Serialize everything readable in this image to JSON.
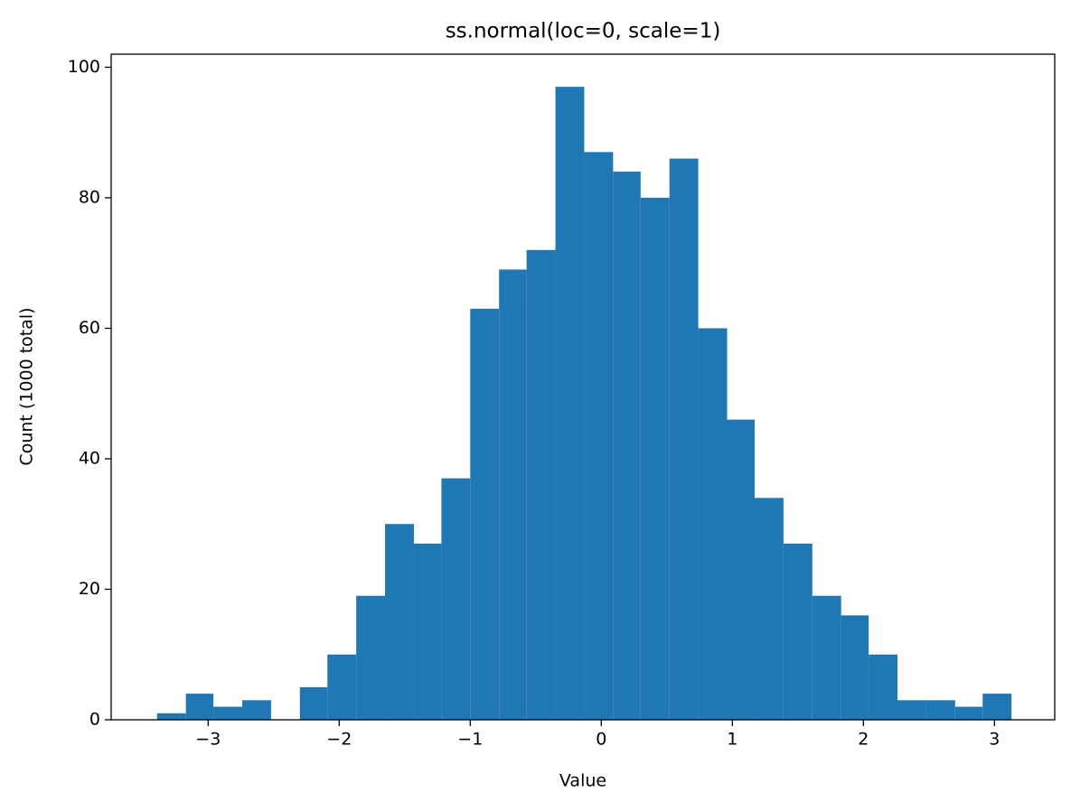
{
  "chart_data": {
    "type": "histogram",
    "title": "ss.normal(loc=0, scale=1)",
    "x_label": "Value",
    "y_label": "Count (1000 total)",
    "color": "#1f77b4",
    "bins": [
      -3.39,
      -3.17,
      -2.96,
      -2.74,
      -2.52,
      -2.3,
      -2.09,
      -1.87,
      -1.65,
      -1.43,
      -1.22,
      -1.0,
      -0.78,
      -0.57,
      -0.35,
      -0.13,
      0.09,
      0.3,
      0.52,
      0.74,
      0.96,
      1.17,
      1.39,
      1.61,
      1.83,
      2.04,
      2.26,
      2.48,
      2.7,
      2.91,
      3.13
    ],
    "values": [
      1,
      4,
      2,
      3,
      0,
      5,
      10,
      19,
      30,
      27,
      37,
      63,
      69,
      72,
      97,
      87,
      84,
      80,
      86,
      60,
      46,
      34,
      27,
      19,
      16,
      10,
      3,
      3,
      2,
      4
    ],
    "xlim": [
      -3.74,
      3.46
    ],
    "ylim": [
      0,
      102
    ],
    "xticks": [
      {
        "value": -3,
        "label": "−3"
      },
      {
        "value": -2,
        "label": "−2"
      },
      {
        "value": -1,
        "label": "−1"
      },
      0,
      1,
      2,
      3
    ],
    "yticks": [
      0,
      20,
      40,
      60,
      80,
      100
    ],
    "grid": false
  }
}
